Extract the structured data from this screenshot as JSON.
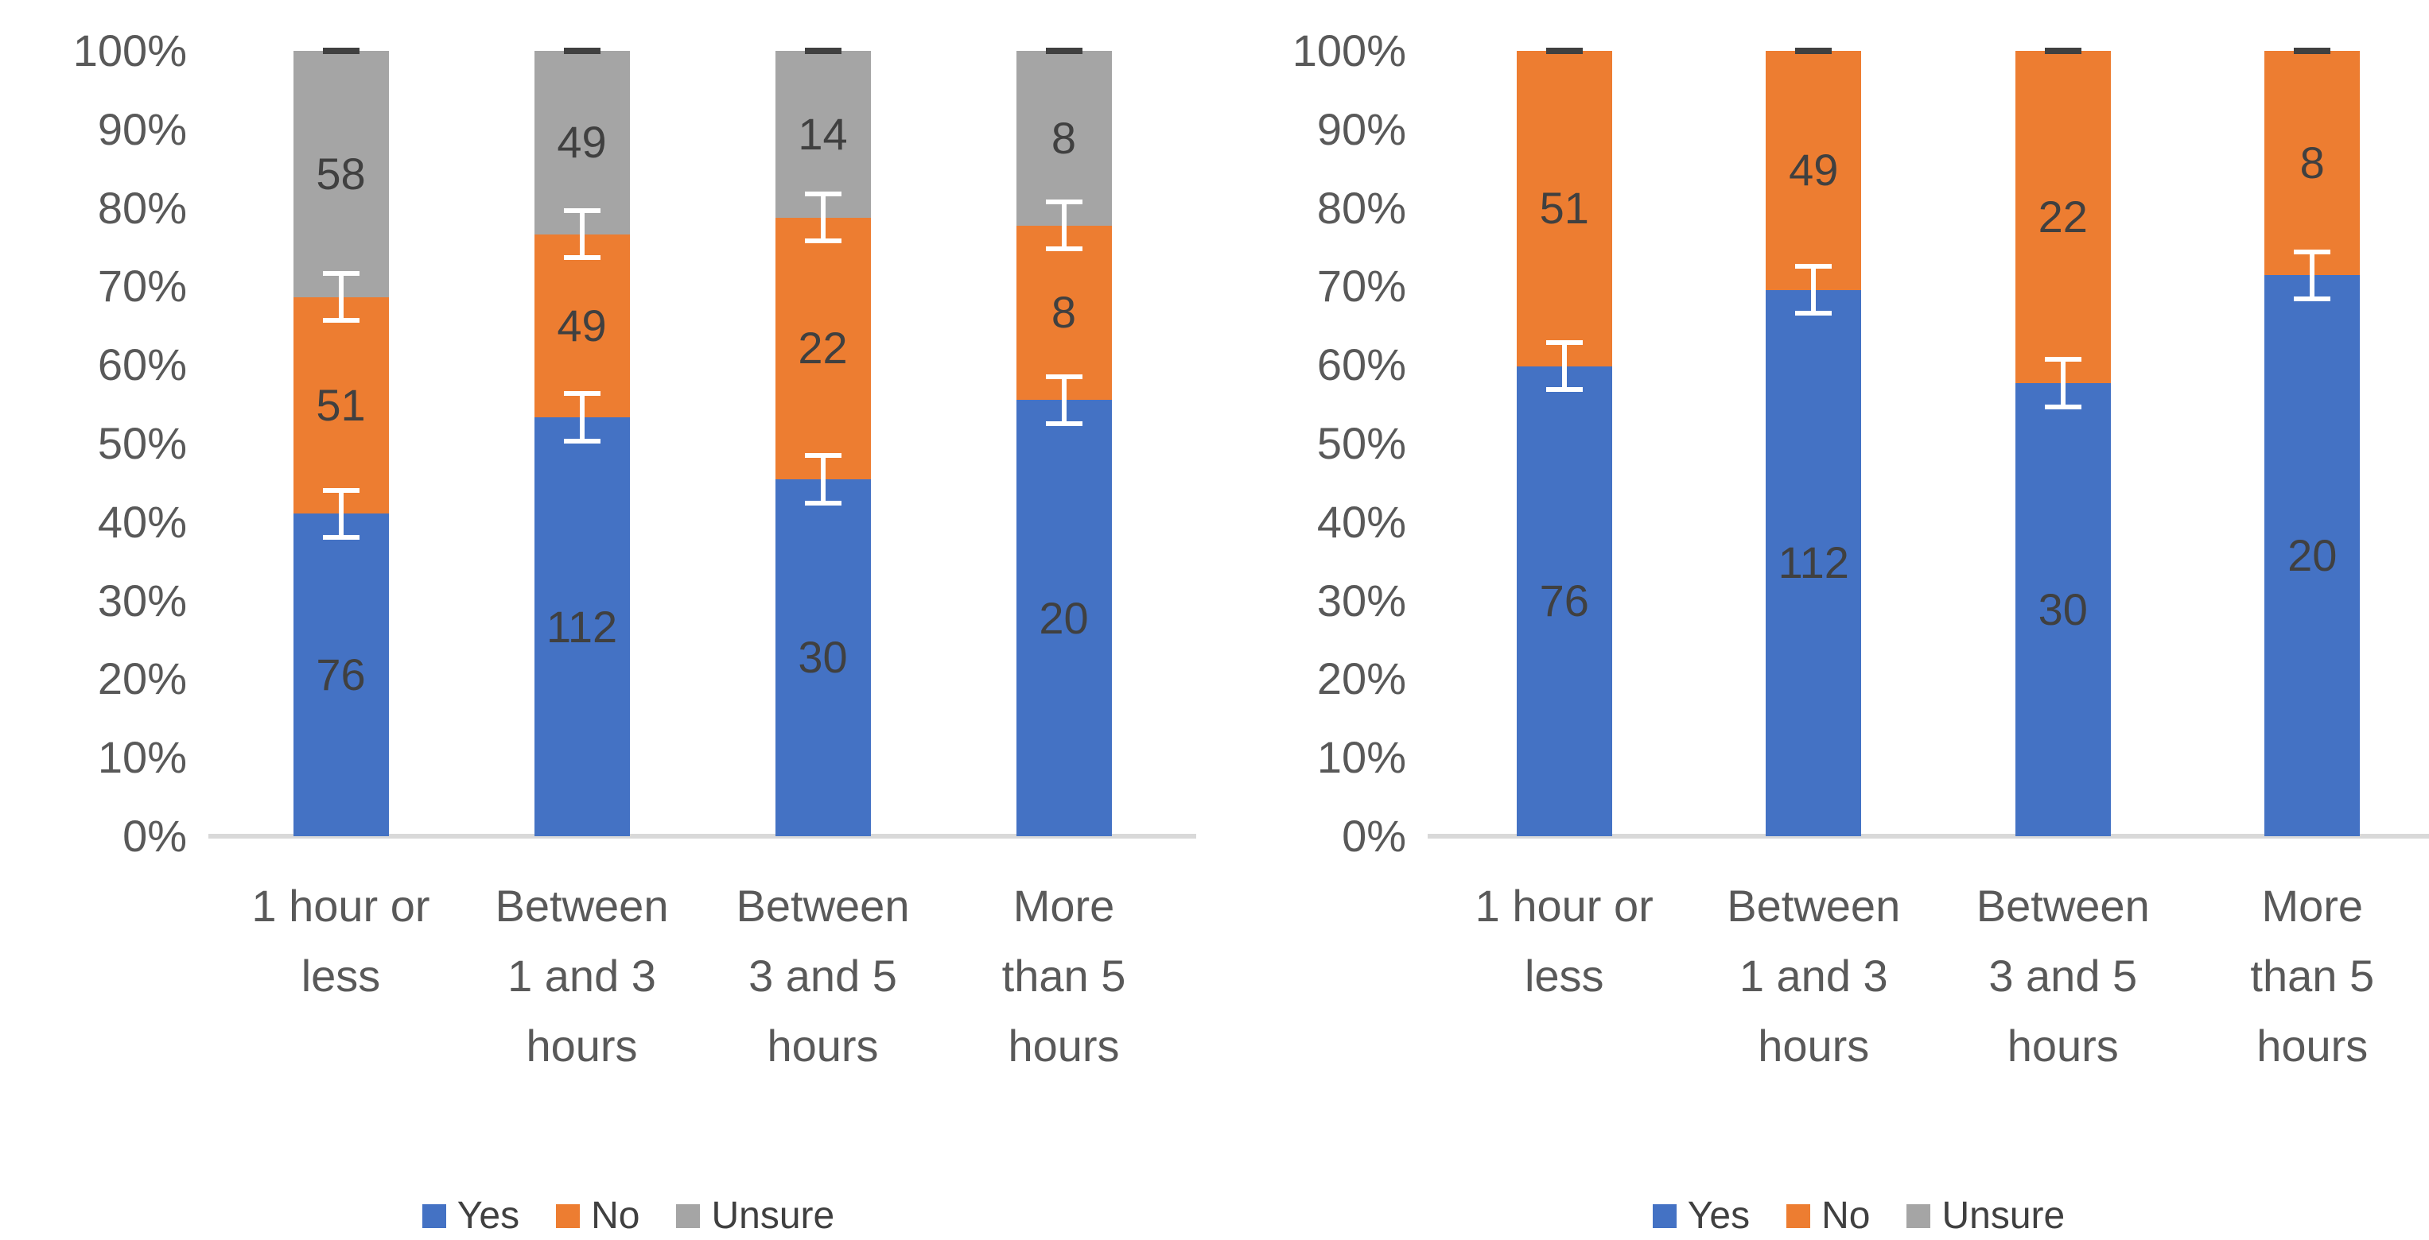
{
  "colors": {
    "background": "#FFFFFF",
    "yes": "#4472C4",
    "no": "#ED7D31",
    "unsure": "#A5A5A5",
    "axis_baseline": "#D9D9D9",
    "tick_text": "#595959",
    "category_text": "#595959",
    "data_label_text": "#404040",
    "error_bar": "#FFFFFF",
    "error_bar_top_cap": "#404040"
  },
  "chart_data": [
    {
      "type": "bar",
      "subtype": "stacked-100-percent-column",
      "title": "",
      "xlabel": "",
      "ylabel": "",
      "ylim": [
        0,
        100
      ],
      "grid": false,
      "y_ticks": [
        "0%",
        "10%",
        "20%",
        "30%",
        "40%",
        "50%",
        "60%",
        "70%",
        "80%",
        "90%",
        "100%"
      ],
      "categories": [
        "1 hour or less",
        "Between 1 and 3 hours",
        "Between 3 and 5 hours",
        "More than 5 hours"
      ],
      "category_label_lines": [
        [
          "1 hour or",
          "less"
        ],
        [
          "Between",
          "1 and 3",
          "hours"
        ],
        [
          "Between",
          "3 and 5",
          "hours"
        ],
        [
          "More",
          "than 5",
          "hours"
        ]
      ],
      "series": [
        {
          "name": "Yes",
          "color": "#4472C4",
          "values": [
            76,
            112,
            30,
            20
          ]
        },
        {
          "name": "No",
          "color": "#ED7D31",
          "values": [
            51,
            49,
            22,
            8
          ]
        },
        {
          "name": "Unsure",
          "color": "#A5A5A5",
          "values": [
            58,
            49,
            14,
            8
          ]
        }
      ],
      "stack_percentages": [
        [
          41.1,
          27.6,
          31.4
        ],
        [
          53.3,
          23.3,
          23.3
        ],
        [
          45.5,
          33.3,
          21.2
        ],
        [
          55.6,
          22.2,
          22.2
        ]
      ],
      "data_labels_shown": true,
      "error_bars": {
        "shown": true,
        "half_extent_pct": 3.3,
        "at_boundaries": true
      },
      "legend": {
        "position": "bottom",
        "entries": [
          "Yes",
          "No",
          "Unsure"
        ]
      }
    },
    {
      "type": "bar",
      "subtype": "stacked-100-percent-column",
      "title": "",
      "xlabel": "",
      "ylabel": "",
      "ylim": [
        0,
        100
      ],
      "grid": false,
      "y_ticks": [
        "0%",
        "10%",
        "20%",
        "30%",
        "40%",
        "50%",
        "60%",
        "70%",
        "80%",
        "90%",
        "100%"
      ],
      "categories": [
        "1 hour or less",
        "Between 1 and 3 hours",
        "Between 3 and 5 hours",
        "More than 5 hours"
      ],
      "category_label_lines": [
        [
          "1 hour or",
          "less"
        ],
        [
          "Between",
          "1 and 3",
          "hours"
        ],
        [
          "Between",
          "3 and 5",
          "hours"
        ],
        [
          "More",
          "than 5",
          "hours"
        ]
      ],
      "series": [
        {
          "name": "Yes",
          "color": "#4472C4",
          "values": [
            76,
            112,
            30,
            20
          ]
        },
        {
          "name": "No",
          "color": "#ED7D31",
          "values": [
            51,
            49,
            22,
            8
          ]
        },
        {
          "name": "Unsure",
          "color": "#A5A5A5",
          "values": [
            0,
            0,
            0,
            0
          ]
        }
      ],
      "stack_percentages": [
        [
          59.8,
          40.2,
          0
        ],
        [
          69.6,
          30.4,
          0
        ],
        [
          57.7,
          42.3,
          0
        ],
        [
          71.4,
          28.6,
          0
        ]
      ],
      "data_labels_shown": true,
      "error_bars": {
        "shown": true,
        "half_extent_pct": 3.3,
        "at_boundaries": true
      },
      "legend": {
        "position": "bottom",
        "entries": [
          "Yes",
          "No",
          "Unsure"
        ]
      }
    }
  ]
}
